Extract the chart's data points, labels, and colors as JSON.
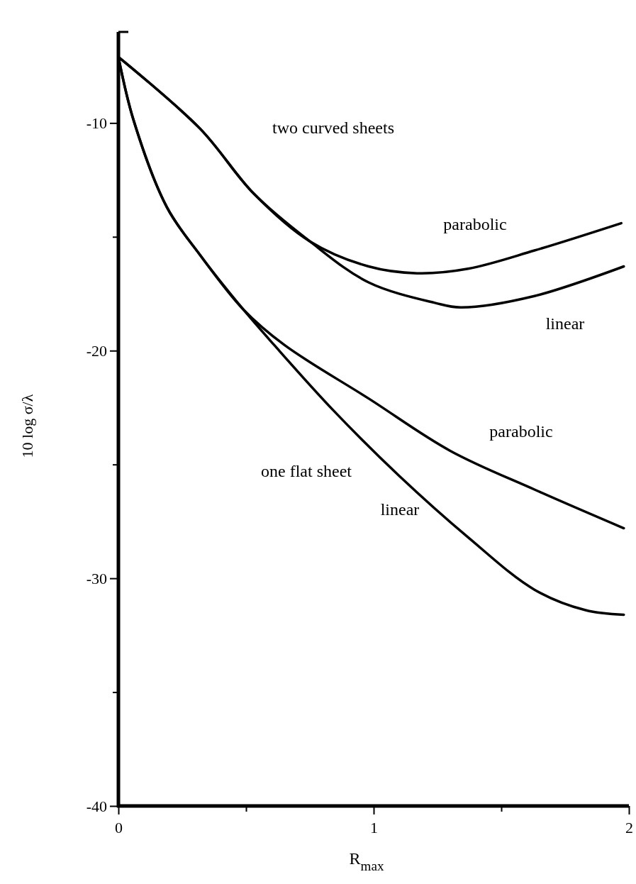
{
  "chart_data": {
    "type": "line",
    "xlabel": "R$_{max}$",
    "ylabel": "10 log σ/λ",
    "xlim": [
      0,
      2
    ],
    "ylim": [
      -40,
      -6
    ],
    "xticks": [
      0,
      {
        "value": 0.5,
        "label": null
      },
      1,
      {
        "value": 1.5,
        "label": null
      },
      2
    ],
    "yticks": [
      -40,
      {
        "value": -35,
        "label": null
      },
      -30,
      {
        "value": -25,
        "label": null
      },
      -20,
      {
        "value": -15,
        "label": null
      },
      -10
    ],
    "grid": false,
    "marker": "none",
    "line_style": "solid",
    "series": [
      {
        "color": "#000000",
        "x": [
          0,
          0.32,
          0.53,
          0.75,
          0.98,
          1.17,
          1.37,
          1.63,
          1.97
        ],
        "values": [
          -7.1,
          -10.25,
          -13.1,
          -15.2,
          -16.3,
          -16.6,
          -16.4,
          -15.6,
          -14.4
        ]
      },
      {
        "color": "#000000",
        "x": [
          0,
          0.32,
          0.53,
          0.75,
          0.98,
          1.24,
          1.34,
          1.63,
          1.98
        ],
        "values": [
          -7.1,
          -10.25,
          -13.1,
          -15.2,
          -17.0,
          -17.9,
          -18.1,
          -17.6,
          -16.3
        ]
      },
      {
        "color": "#000000",
        "x": [
          0,
          0.06,
          0.19,
          0.32,
          0.49,
          0.65,
          0.98,
          1.3,
          1.63,
          1.98
        ],
        "values": [
          -7.1,
          -9.9,
          -13.7,
          -15.8,
          -18.2,
          -19.75,
          -22.1,
          -24.4,
          -26.1,
          -27.8
        ]
      },
      {
        "color": "#000000",
        "x": [
          0,
          0.06,
          0.19,
          0.32,
          0.49,
          0.61,
          0.84,
          1.1,
          1.37,
          1.63,
          1.83,
          1.98
        ],
        "values": [
          -7.1,
          -9.9,
          -13.7,
          -15.8,
          -18.2,
          -19.75,
          -22.6,
          -25.5,
          -28.2,
          -30.5,
          -31.4,
          -31.6
        ]
      }
    ],
    "annotations": [
      "two curved sheets",
      "parabolic",
      "linear",
      "parabolic",
      "one flat sheet",
      "linear"
    ]
  }
}
